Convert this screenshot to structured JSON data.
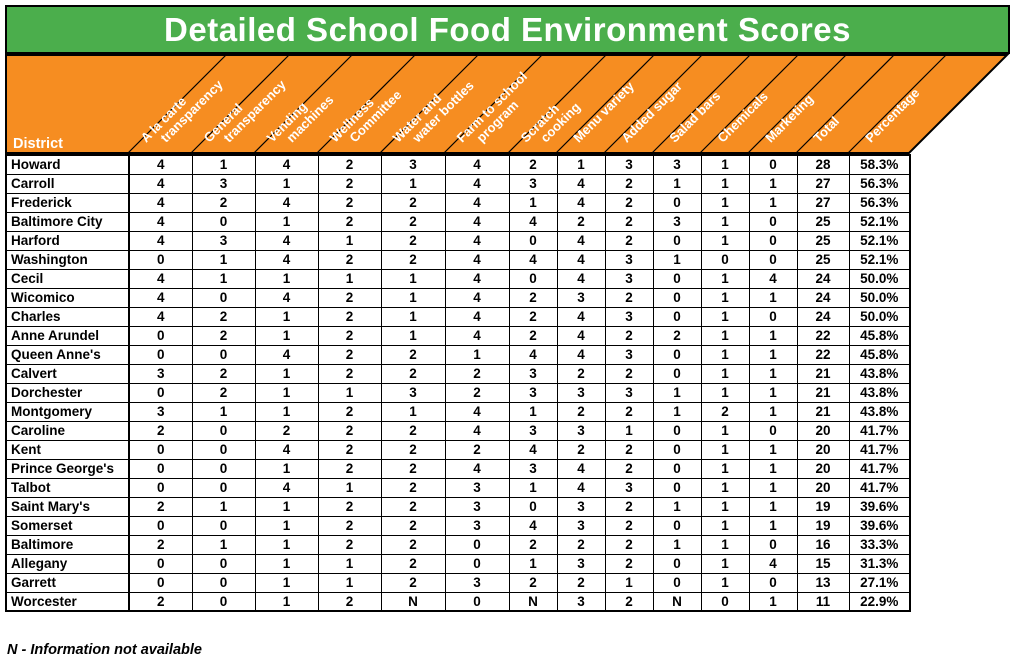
{
  "colors": {
    "header_green": "#4bae4c",
    "header_orange": "#f68d21",
    "border": "#000000",
    "header_text": "#ffffff",
    "body_text": "#000000"
  },
  "chart_data": {
    "type": "table",
    "title": "Detailed School Food Environment Scores",
    "row_header_label": "District",
    "columns_full": [
      "A la carte transparency",
      "General transparency",
      "Vending machines",
      "Wellness Committee",
      "Water and water bottles",
      "Farm to school program",
      "Scratch cooking",
      "Menu variety",
      "Added sugar",
      "Salad bars",
      "Chemicals",
      "Marketing",
      "Total",
      "Percentage"
    ],
    "columns": [
      [
        "A la carte",
        "transparency"
      ],
      [
        "General",
        "transparency"
      ],
      [
        "Vending",
        "machines"
      ],
      [
        "Wellness",
        "Committee"
      ],
      [
        "Water and",
        "water bottles"
      ],
      [
        "Farm to school",
        "program"
      ],
      [
        "Scratch",
        "cooking"
      ],
      [
        "Menu variety"
      ],
      [
        "Added sugar"
      ],
      [
        "Salad bars"
      ],
      [
        "Chemicals"
      ],
      [
        "Marketing"
      ],
      [
        "Total"
      ],
      [
        "Percentage"
      ]
    ],
    "rows": [
      {
        "district": "Howard",
        "scores": [
          "4",
          "1",
          "4",
          "2",
          "3",
          "4",
          "2",
          "1",
          "3",
          "3",
          "1",
          "0"
        ],
        "total": "28",
        "percentage": "58.3%"
      },
      {
        "district": "Carroll",
        "scores": [
          "4",
          "3",
          "1",
          "2",
          "1",
          "4",
          "3",
          "4",
          "2",
          "1",
          "1",
          "1"
        ],
        "total": "27",
        "percentage": "56.3%"
      },
      {
        "district": "Frederick",
        "scores": [
          "4",
          "2",
          "4",
          "2",
          "2",
          "4",
          "1",
          "4",
          "2",
          "0",
          "1",
          "1"
        ],
        "total": "27",
        "percentage": "56.3%"
      },
      {
        "district": "Baltimore City",
        "scores": [
          "4",
          "0",
          "1",
          "2",
          "2",
          "4",
          "4",
          "2",
          "2",
          "3",
          "1",
          "0"
        ],
        "total": "25",
        "percentage": "52.1%"
      },
      {
        "district": "Harford",
        "scores": [
          "4",
          "3",
          "4",
          "1",
          "2",
          "4",
          "0",
          "4",
          "2",
          "0",
          "1",
          "0"
        ],
        "total": "25",
        "percentage": "52.1%"
      },
      {
        "district": "Washington",
        "scores": [
          "0",
          "1",
          "4",
          "2",
          "2",
          "4",
          "4",
          "4",
          "3",
          "1",
          "0",
          "0"
        ],
        "total": "25",
        "percentage": "52.1%"
      },
      {
        "district": "Cecil",
        "scores": [
          "4",
          "1",
          "1",
          "1",
          "1",
          "4",
          "0",
          "4",
          "3",
          "0",
          "1",
          "4"
        ],
        "total": "24",
        "percentage": "50.0%"
      },
      {
        "district": "Wicomico",
        "scores": [
          "4",
          "0",
          "4",
          "2",
          "1",
          "4",
          "2",
          "3",
          "2",
          "0",
          "1",
          "1"
        ],
        "total": "24",
        "percentage": "50.0%"
      },
      {
        "district": "Charles",
        "scores": [
          "4",
          "2",
          "1",
          "2",
          "1",
          "4",
          "2",
          "4",
          "3",
          "0",
          "1",
          "0"
        ],
        "total": "24",
        "percentage": "50.0%"
      },
      {
        "district": "Anne Arundel",
        "scores": [
          "0",
          "2",
          "1",
          "2",
          "1",
          "4",
          "2",
          "4",
          "2",
          "2",
          "1",
          "1"
        ],
        "total": "22",
        "percentage": "45.8%"
      },
      {
        "district": "Queen Anne's",
        "scores": [
          "0",
          "0",
          "4",
          "2",
          "2",
          "1",
          "4",
          "4",
          "3",
          "0",
          "1",
          "1"
        ],
        "total": "22",
        "percentage": "45.8%"
      },
      {
        "district": "Calvert",
        "scores": [
          "3",
          "2",
          "1",
          "2",
          "2",
          "2",
          "3",
          "2",
          "2",
          "0",
          "1",
          "1"
        ],
        "total": "21",
        "percentage": "43.8%"
      },
      {
        "district": "Dorchester",
        "scores": [
          "0",
          "2",
          "1",
          "1",
          "3",
          "2",
          "3",
          "3",
          "3",
          "1",
          "1",
          "1"
        ],
        "total": "21",
        "percentage": "43.8%"
      },
      {
        "district": "Montgomery",
        "scores": [
          "3",
          "1",
          "1",
          "2",
          "1",
          "4",
          "1",
          "2",
          "2",
          "1",
          "2",
          "1"
        ],
        "total": "21",
        "percentage": "43.8%"
      },
      {
        "district": "Caroline",
        "scores": [
          "2",
          "0",
          "2",
          "2",
          "2",
          "4",
          "3",
          "3",
          "1",
          "0",
          "1",
          "0"
        ],
        "total": "20",
        "percentage": "41.7%"
      },
      {
        "district": "Kent",
        "scores": [
          "0",
          "0",
          "4",
          "2",
          "2",
          "2",
          "4",
          "2",
          "2",
          "0",
          "1",
          "1"
        ],
        "total": "20",
        "percentage": "41.7%"
      },
      {
        "district": "Prince George's",
        "scores": [
          "0",
          "0",
          "1",
          "2",
          "2",
          "4",
          "3",
          "4",
          "2",
          "0",
          "1",
          "1"
        ],
        "total": "20",
        "percentage": "41.7%"
      },
      {
        "district": "Talbot",
        "scores": [
          "0",
          "0",
          "4",
          "1",
          "2",
          "3",
          "1",
          "4",
          "3",
          "0",
          "1",
          "1"
        ],
        "total": "20",
        "percentage": "41.7%"
      },
      {
        "district": "Saint Mary's",
        "scores": [
          "2",
          "1",
          "1",
          "2",
          "2",
          "3",
          "0",
          "3",
          "2",
          "1",
          "1",
          "1"
        ],
        "total": "19",
        "percentage": "39.6%"
      },
      {
        "district": "Somerset",
        "scores": [
          "0",
          "0",
          "1",
          "2",
          "2",
          "3",
          "4",
          "3",
          "2",
          "0",
          "1",
          "1"
        ],
        "total": "19",
        "percentage": "39.6%"
      },
      {
        "district": "Baltimore",
        "scores": [
          "2",
          "1",
          "1",
          "2",
          "2",
          "0",
          "2",
          "2",
          "2",
          "1",
          "1",
          "0"
        ],
        "total": "16",
        "percentage": "33.3%"
      },
      {
        "district": "Allegany",
        "scores": [
          "0",
          "0",
          "1",
          "1",
          "2",
          "0",
          "1",
          "3",
          "2",
          "0",
          "1",
          "4"
        ],
        "total": "15",
        "percentage": "31.3%"
      },
      {
        "district": "Garrett",
        "scores": [
          "0",
          "0",
          "1",
          "1",
          "2",
          "3",
          "2",
          "2",
          "1",
          "0",
          "1",
          "0"
        ],
        "total": "13",
        "percentage": "27.1%"
      },
      {
        "district": "Worcester",
        "scores": [
          "2",
          "0",
          "1",
          "2",
          "N",
          "0",
          "N",
          "3",
          "2",
          "N",
          "0",
          "1"
        ],
        "total": "11",
        "percentage": "22.9%"
      }
    ],
    "footnote": "N - Information not available"
  }
}
